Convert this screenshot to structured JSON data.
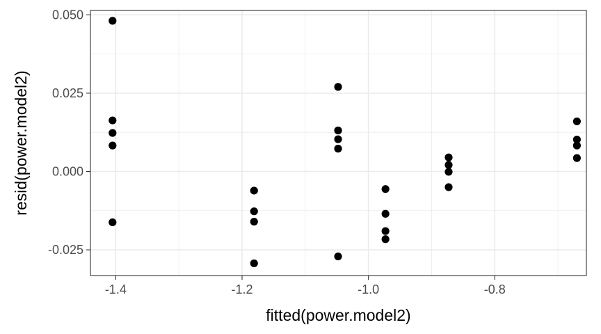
{
  "chart_data": {
    "type": "scatter",
    "title": "",
    "xlabel": "fitted(power.model2)",
    "ylabel": "resid(power.model2)",
    "xlim": [
      -1.44,
      -0.655
    ],
    "ylim": [
      -0.0332,
      0.0514
    ],
    "x_ticks": [
      -1.4,
      -1.2,
      -1.0,
      -0.8
    ],
    "x_tick_labels": [
      "-1.4",
      "-1.2",
      "-1.0",
      "-0.8"
    ],
    "y_ticks": [
      -0.025,
      0.0,
      0.025,
      0.05
    ],
    "y_tick_labels": [
      "-0.025",
      "0.000",
      "0.025",
      "0.050"
    ],
    "grid": true,
    "theme": "bw",
    "colors": {
      "point": "#000000",
      "grid": "#ebebeb",
      "panel_border": "#333333",
      "tick_text": "#4d4d4d"
    },
    "points": [
      {
        "x": -1.405,
        "y": 0.0481
      },
      {
        "x": -1.405,
        "y": 0.0163
      },
      {
        "x": -1.405,
        "y": 0.0123
      },
      {
        "x": -1.405,
        "y": 0.0083
      },
      {
        "x": -1.405,
        "y": -0.0162
      },
      {
        "x": -1.181,
        "y": -0.0061
      },
      {
        "x": -1.181,
        "y": -0.0127
      },
      {
        "x": -1.181,
        "y": -0.016
      },
      {
        "x": -1.181,
        "y": -0.0293
      },
      {
        "x": -1.048,
        "y": 0.027
      },
      {
        "x": -1.048,
        "y": 0.0131
      },
      {
        "x": -1.048,
        "y": 0.0103
      },
      {
        "x": -1.048,
        "y": 0.0073
      },
      {
        "x": -1.048,
        "y": -0.0271
      },
      {
        "x": -0.973,
        "y": -0.0056
      },
      {
        "x": -0.973,
        "y": -0.0135
      },
      {
        "x": -0.973,
        "y": -0.019
      },
      {
        "x": -0.973,
        "y": -0.0216
      },
      {
        "x": -0.873,
        "y": 0.0045
      },
      {
        "x": -0.873,
        "y": 0.0021
      },
      {
        "x": -0.873,
        "y": -0.0001
      },
      {
        "x": -0.873,
        "y": -0.005
      },
      {
        "x": -0.67,
        "y": 0.016
      },
      {
        "x": -0.67,
        "y": 0.0102
      },
      {
        "x": -0.67,
        "y": 0.0083
      },
      {
        "x": -0.67,
        "y": 0.0043
      }
    ]
  }
}
